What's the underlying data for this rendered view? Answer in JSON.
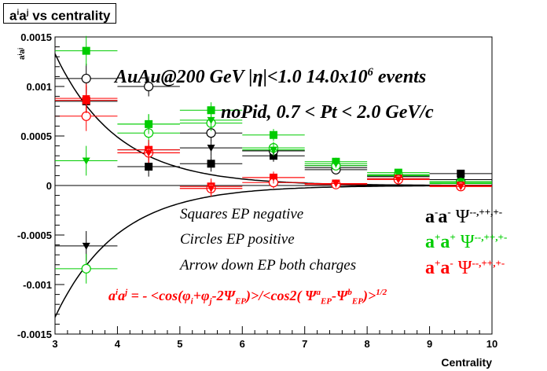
{
  "title": {
    "left": "a",
    "sup1": "i",
    "mid": "a",
    "sup2": "j",
    "right": " vs centrality"
  },
  "annotations": {
    "line1": {
      "pre": "AuAu@200 GeV |η|<1.0 14.0x10",
      "sup": "6",
      "post": " events"
    },
    "line2": "noPid, 0.7 < Pt < 2.0 GeV/c",
    "squares": "Squares EP negative",
    "circles": "Circles EP positive",
    "arrow": "Arrow down EP both charges"
  },
  "legend": [
    {
      "a1": "a",
      "s1": "-",
      "a2": "a",
      "s2": "-",
      "psi": "Ψ",
      "psisup": "--,++,+-",
      "color": "#000000"
    },
    {
      "a1": "a",
      "s1": "+",
      "a2": "a",
      "s2": "+",
      "psi": "Ψ",
      "psisup": "--,++,+-",
      "color": "#00cc00"
    },
    {
      "a1": "a",
      "s1": "+",
      "a2": "a",
      "s2": "-",
      "psi": "Ψ",
      "psisup": "--,++,+-",
      "color": "#ff0000"
    }
  ],
  "formula": {
    "t1": "a",
    "t1s": "i",
    "t2": "a",
    "t2s": "j",
    "t3": " = - <cos(φ",
    "t3s": "i",
    "t4": "+φ",
    "t4s": "j",
    "t5": "-2Ψ",
    "t5s": "EP",
    "t6": ")>/<cos2( Ψ",
    "t6sup": "a",
    "t6sub": "EP",
    "t7": "-Ψ",
    "t7sup": "b",
    "t7sub": "EP",
    "t8": ")>",
    "t8sup": "1/2"
  },
  "chart_data": {
    "type": "scatter",
    "title": "a^i a^j vs centrality",
    "xlabel": "Centrality",
    "ylabel": "a^i a^j",
    "xlim": [
      3,
      10
    ],
    "ylim": [
      -0.0015,
      0.0015
    ],
    "xticks": [
      3,
      4,
      5,
      6,
      7,
      8,
      9,
      10
    ],
    "yticks": [
      -0.0015,
      -0.001,
      -0.0005,
      0,
      0.0005,
      0.001,
      0.0015
    ],
    "ytick_labels": [
      "-0.0015",
      "-0.001",
      "-0.0005",
      "0",
      "0.0005",
      "0.001",
      "0.0015"
    ],
    "grid": false,
    "x_bins": [
      [
        3,
        4
      ],
      [
        4,
        5
      ],
      [
        5,
        6
      ],
      [
        6,
        7
      ],
      [
        7,
        8
      ],
      [
        8,
        9
      ],
      [
        9,
        10
      ]
    ],
    "curve": {
      "amplitude": 0.00133,
      "x0": 3.0,
      "decay": 1.0,
      "mirrored": true
    },
    "series": [
      {
        "charge": "a-a-",
        "marker": "square",
        "color": "#000000",
        "x": [
          3.5,
          4.5,
          5.5,
          6.5,
          7.5,
          8.5,
          9.5
        ],
        "y": [
          0.00085,
          0.00019,
          0.00022,
          0.0003,
          0.00018,
          9e-05,
          0.00012
        ],
        "err": [
          0.00015,
          0.0001,
          8e-05,
          6e-05,
          4e-05,
          3e-05,
          3e-05
        ]
      },
      {
        "charge": "a-a-",
        "marker": "circle",
        "color": "#000000",
        "x": [
          3.5,
          4.5,
          5.5,
          6.5,
          7.5,
          8.5,
          9.5
        ],
        "y": [
          0.00108,
          0.001,
          0.00053,
          0.00035,
          0.00016,
          7e-05,
          4e-05
        ],
        "err": [
          0.00015,
          0.0001,
          8e-05,
          6e-05,
          4e-05,
          3e-05,
          3e-05
        ]
      },
      {
        "charge": "a-a-",
        "marker": "triangle-down",
        "color": "#000000",
        "x": [
          3.5,
          4.5,
          5.5,
          6.5,
          7.5,
          8.5,
          9.5
        ],
        "y": [
          -0.00061,
          0.00036,
          0.00038,
          0.00035,
          0.0002,
          0.0001,
          6e-05
        ],
        "err": [
          0.00015,
          0.0001,
          8e-05,
          6e-05,
          4e-05,
          3e-05,
          3e-05
        ]
      },
      {
        "charge": "a+a+",
        "marker": "square",
        "color": "#00cc00",
        "x": [
          3.5,
          4.5,
          5.5,
          6.5,
          7.5,
          8.5,
          9.5
        ],
        "y": [
          0.00136,
          0.00062,
          0.00076,
          0.00051,
          0.00024,
          0.00013,
          2e-05
        ],
        "err": [
          0.00015,
          0.0001,
          8e-05,
          6e-05,
          4e-05,
          3e-05,
          3e-05
        ]
      },
      {
        "charge": "a+a+",
        "marker": "circle",
        "color": "#00cc00",
        "x": [
          3.5,
          4.5,
          5.5,
          6.5,
          7.5,
          8.5,
          9.5
        ],
        "y": [
          -0.00084,
          0.00053,
          0.00063,
          0.00038,
          0.0002,
          0.0001,
          3e-05
        ],
        "err": [
          0.00015,
          0.0001,
          8e-05,
          6e-05,
          4e-05,
          3e-05,
          3e-05
        ]
      },
      {
        "charge": "a+a+",
        "marker": "triangle-down",
        "color": "#00cc00",
        "x": [
          3.5,
          4.5,
          5.5,
          6.5,
          7.5,
          8.5,
          9.5
        ],
        "y": [
          0.00025,
          0.00062,
          0.00066,
          0.00036,
          0.00022,
          0.00011,
          4e-05
        ],
        "err": [
          0.00015,
          0.0001,
          8e-05,
          6e-05,
          4e-05,
          3e-05,
          3e-05
        ]
      },
      {
        "charge": "a+a-",
        "marker": "square",
        "color": "#ff0000",
        "x": [
          3.5,
          4.5,
          5.5,
          6.5,
          7.5,
          8.5,
          9.5
        ],
        "y": [
          0.00086,
          0.00036,
          -1e-05,
          8e-05,
          2e-05,
          7e-05,
          0.0
        ],
        "err": [
          0.00015,
          0.0001,
          8e-05,
          6e-05,
          4e-05,
          3e-05,
          3e-05
        ]
      },
      {
        "charge": "a+a-",
        "marker": "circle",
        "color": "#ff0000",
        "x": [
          3.5,
          4.5,
          5.5,
          6.5,
          7.5,
          8.5,
          9.5
        ],
        "y": [
          0.0007,
          0.00033,
          -3e-05,
          3e-05,
          1e-05,
          6e-05,
          -1e-05
        ],
        "err": [
          0.00015,
          0.0001,
          8e-05,
          6e-05,
          4e-05,
          3e-05,
          3e-05
        ]
      },
      {
        "charge": "a+a-",
        "marker": "triangle-down",
        "color": "#ff0000",
        "x": [
          3.5,
          4.5,
          5.5,
          6.5,
          7.5,
          8.5,
          9.5
        ],
        "y": [
          0.00088,
          0.00033,
          -3e-05,
          8e-05,
          2e-05,
          6e-05,
          -1e-05
        ],
        "err": [
          0.00015,
          0.0001,
          8e-05,
          6e-05,
          4e-05,
          3e-05,
          3e-05
        ]
      }
    ]
  }
}
